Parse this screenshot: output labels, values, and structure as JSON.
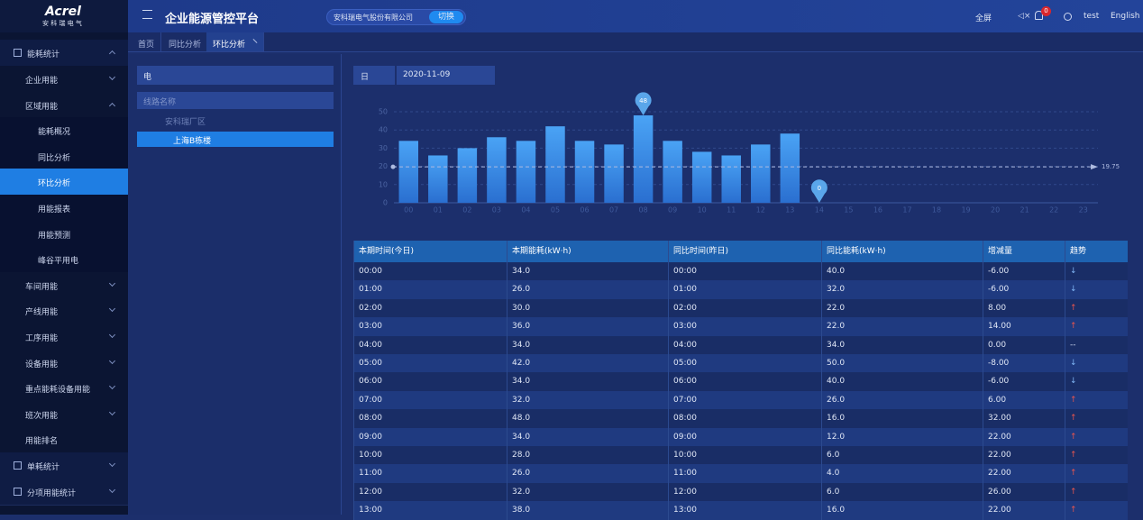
{
  "header": {
    "logo": "Acrel",
    "logo_sub": "安 科 瑞 电 气",
    "title": "企业能源管控平台",
    "company": "安科瑞电气股份有限公司",
    "switch": "切换",
    "fullscreen": "全屏",
    "badge": "0",
    "user": "test",
    "language": "English"
  },
  "sidebar": [
    {
      "label": "能耗统计",
      "children": [
        {
          "label": "企业用能"
        },
        {
          "label": "区域用能",
          "children": [
            {
              "label": "能耗概况"
            },
            {
              "label": "同比分析"
            },
            {
              "label": "环比分析"
            },
            {
              "label": "用能报表"
            },
            {
              "label": "用能预测"
            },
            {
              "label": "峰谷平用电"
            }
          ]
        },
        {
          "label": "车间用能"
        },
        {
          "label": "产线用能"
        },
        {
          "label": "工序用能"
        },
        {
          "label": "设备用能"
        },
        {
          "label": "重点能耗设备用能"
        },
        {
          "label": "班次用能"
        },
        {
          "label": "用能排名"
        }
      ]
    },
    {
      "label": "单耗统计"
    },
    {
      "label": "分项用能统计"
    }
  ],
  "tabs": [
    "首页",
    "同比分析",
    "环比分析"
  ],
  "filter": {
    "energy": "电",
    "search_placeholder": "线路名称",
    "tree_root": "安科瑞厂区",
    "tree_child": "上海B栋楼",
    "period": "日",
    "date": "2020-11-09"
  },
  "chart_data": {
    "type": "bar",
    "categories": [
      "00",
      "01",
      "02",
      "03",
      "04",
      "05",
      "06",
      "07",
      "08",
      "09",
      "10",
      "11",
      "12",
      "13",
      "14",
      "15",
      "16",
      "17",
      "18",
      "19",
      "20",
      "21",
      "22",
      "23"
    ],
    "values": [
      34,
      26,
      30,
      36,
      34,
      42,
      34,
      32,
      48,
      34,
      28,
      26,
      32,
      38,
      0,
      null,
      null,
      null,
      null,
      null,
      null,
      null,
      null,
      null
    ],
    "color": "#3a8ee6",
    "ylim": [
      0,
      50
    ],
    "yticks": [
      0,
      10,
      20,
      30,
      40,
      50
    ],
    "grid": true,
    "average": 19.75
  },
  "table": {
    "columns": [
      "本期时间(今日)",
      "本期能耗(kW·h)",
      "同比时间(昨日)",
      "同比能耗(kW·h)",
      "增减量",
      "趋势"
    ],
    "rows": [
      [
        "00:00",
        "34.0",
        "00:00",
        "40.0",
        "-6.00",
        "↓"
      ],
      [
        "01:00",
        "26.0",
        "01:00",
        "32.0",
        "-6.00",
        "↓"
      ],
      [
        "02:00",
        "30.0",
        "02:00",
        "22.0",
        "8.00",
        "↑"
      ],
      [
        "03:00",
        "36.0",
        "03:00",
        "22.0",
        "14.00",
        "↑"
      ],
      [
        "04:00",
        "34.0",
        "04:00",
        "34.0",
        "0.00",
        "--"
      ],
      [
        "05:00",
        "42.0",
        "05:00",
        "50.0",
        "-8.00",
        "↓"
      ],
      [
        "06:00",
        "34.0",
        "06:00",
        "40.0",
        "-6.00",
        "↓"
      ],
      [
        "07:00",
        "32.0",
        "07:00",
        "26.0",
        "6.00",
        "↑"
      ],
      [
        "08:00",
        "48.0",
        "08:00",
        "16.0",
        "32.00",
        "↑"
      ],
      [
        "09:00",
        "34.0",
        "09:00",
        "12.0",
        "22.00",
        "↑"
      ],
      [
        "10:00",
        "28.0",
        "10:00",
        "6.0",
        "22.00",
        "↑"
      ],
      [
        "11:00",
        "26.0",
        "11:00",
        "4.0",
        "22.00",
        "↑"
      ],
      [
        "12:00",
        "32.0",
        "12:00",
        "6.0",
        "26.00",
        "↑"
      ],
      [
        "13:00",
        "38.0",
        "13:00",
        "16.0",
        "22.00",
        "↑"
      ]
    ]
  }
}
